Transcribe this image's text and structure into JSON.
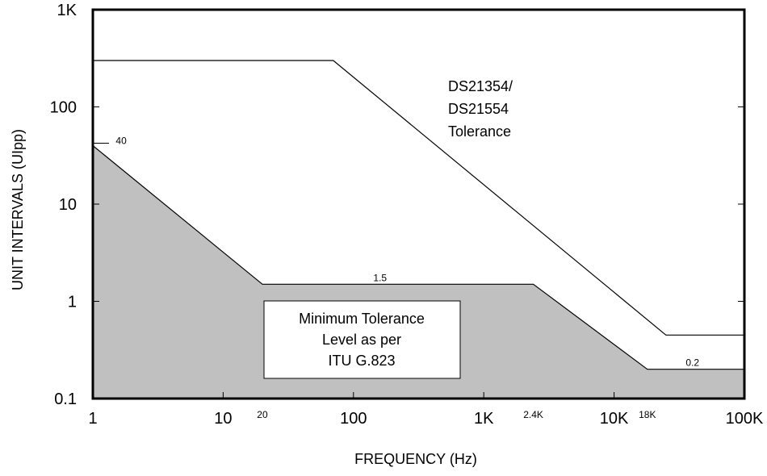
{
  "chart_data": {
    "type": "area",
    "xlabel": "FREQUENCY (Hz)",
    "ylabel": "UNIT INTERVALS (UIpp)",
    "xscale": "log",
    "yscale": "log",
    "xlim": [
      1,
      100000
    ],
    "ylim": [
      0.1,
      1000
    ],
    "grid": false,
    "x_ticks": [
      {
        "value": 1,
        "label": "1"
      },
      {
        "value": 10,
        "label": "10"
      },
      {
        "value": 100,
        "label": "100"
      },
      {
        "value": 1000,
        "label": "1K"
      },
      {
        "value": 10000,
        "label": "10K"
      },
      {
        "value": 100000,
        "label": "100K"
      }
    ],
    "y_ticks": [
      {
        "value": 0.1,
        "label": "0.1"
      },
      {
        "value": 1,
        "label": "1"
      },
      {
        "value": 10,
        "label": "10"
      },
      {
        "value": 100,
        "label": "100"
      },
      {
        "value": 1000,
        "label": "1K"
      }
    ],
    "series": [
      {
        "name": "Minimum Tolerance Level as per ITU G.823",
        "fill": "#c0c0c0",
        "points": [
          [
            1,
            40
          ],
          [
            20,
            1.5
          ],
          [
            2400,
            1.5
          ],
          [
            18000,
            0.2
          ],
          [
            100000,
            0.2
          ]
        ]
      },
      {
        "name": "DS21354/ DS21554 Tolerance",
        "fill": "none",
        "points": [
          [
            1,
            300
          ],
          [
            70,
            300
          ],
          [
            25000,
            0.45
          ],
          [
            100000,
            0.45
          ]
        ]
      }
    ],
    "point_labels": [
      {
        "text": "40",
        "x": 1.5,
        "y": 40
      },
      {
        "text": "1.5",
        "x": 160,
        "y": 1.5
      },
      {
        "text": "0.2",
        "x": 40000,
        "y": 0.2
      },
      {
        "text": "20",
        "x": 20,
        "y": 0.1
      },
      {
        "text": "2.4K",
        "x": 2400,
        "y": 0.1
      },
      {
        "text": "18K",
        "x": 18000,
        "y": 0.1
      }
    ],
    "annotations": {
      "ds_tolerance": [
        "DS21354/",
        "DS21554",
        "Tolerance"
      ],
      "itu_box": [
        "Minimum Tolerance",
        "Level as per",
        "ITU G.823"
      ]
    }
  },
  "colors": {
    "fill": "#c0c0c0",
    "line": "#000000",
    "background": "#ffffff"
  }
}
